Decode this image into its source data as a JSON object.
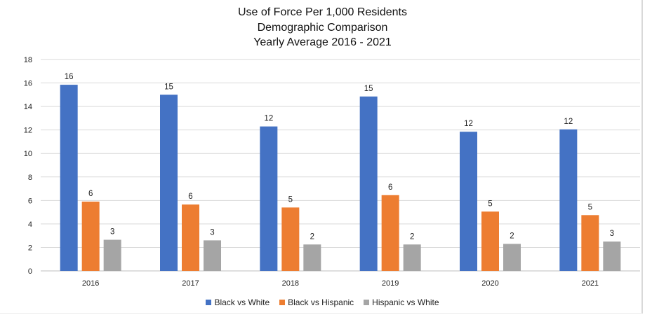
{
  "chart_data": {
    "type": "bar",
    "title_lines": [
      "Use of Force Per 1,000 Residents",
      "Demographic Comparison",
      "Yearly Average 2016 - 2021"
    ],
    "categories": [
      "2016",
      "2017",
      "2018",
      "2019",
      "2020",
      "2021"
    ],
    "series": [
      {
        "name": "Black vs White",
        "color": "#4472c4",
        "values": [
          15.85,
          15.0,
          12.3,
          14.85,
          11.85,
          12.05
        ],
        "labels": [
          "16",
          "15",
          "12",
          "15",
          "12",
          "12"
        ]
      },
      {
        "name": "Black vs Hispanic",
        "color": "#ed7d31",
        "values": [
          5.9,
          5.65,
          5.4,
          6.45,
          5.05,
          4.75
        ],
        "labels": [
          "6",
          "6",
          "5",
          "6",
          "5",
          "5"
        ]
      },
      {
        "name": "Hispanic vs White",
        "color": "#a5a5a5",
        "values": [
          2.65,
          2.6,
          2.25,
          2.25,
          2.3,
          2.5
        ],
        "labels": [
          "3",
          "3",
          "2",
          "2",
          "2",
          "3"
        ]
      }
    ],
    "ylim": [
      0,
      18
    ],
    "yticks": [
      "0",
      "2",
      "4",
      "6",
      "8",
      "10",
      "12",
      "14",
      "16",
      "18"
    ],
    "grid": true,
    "legend_position": "bottom"
  }
}
